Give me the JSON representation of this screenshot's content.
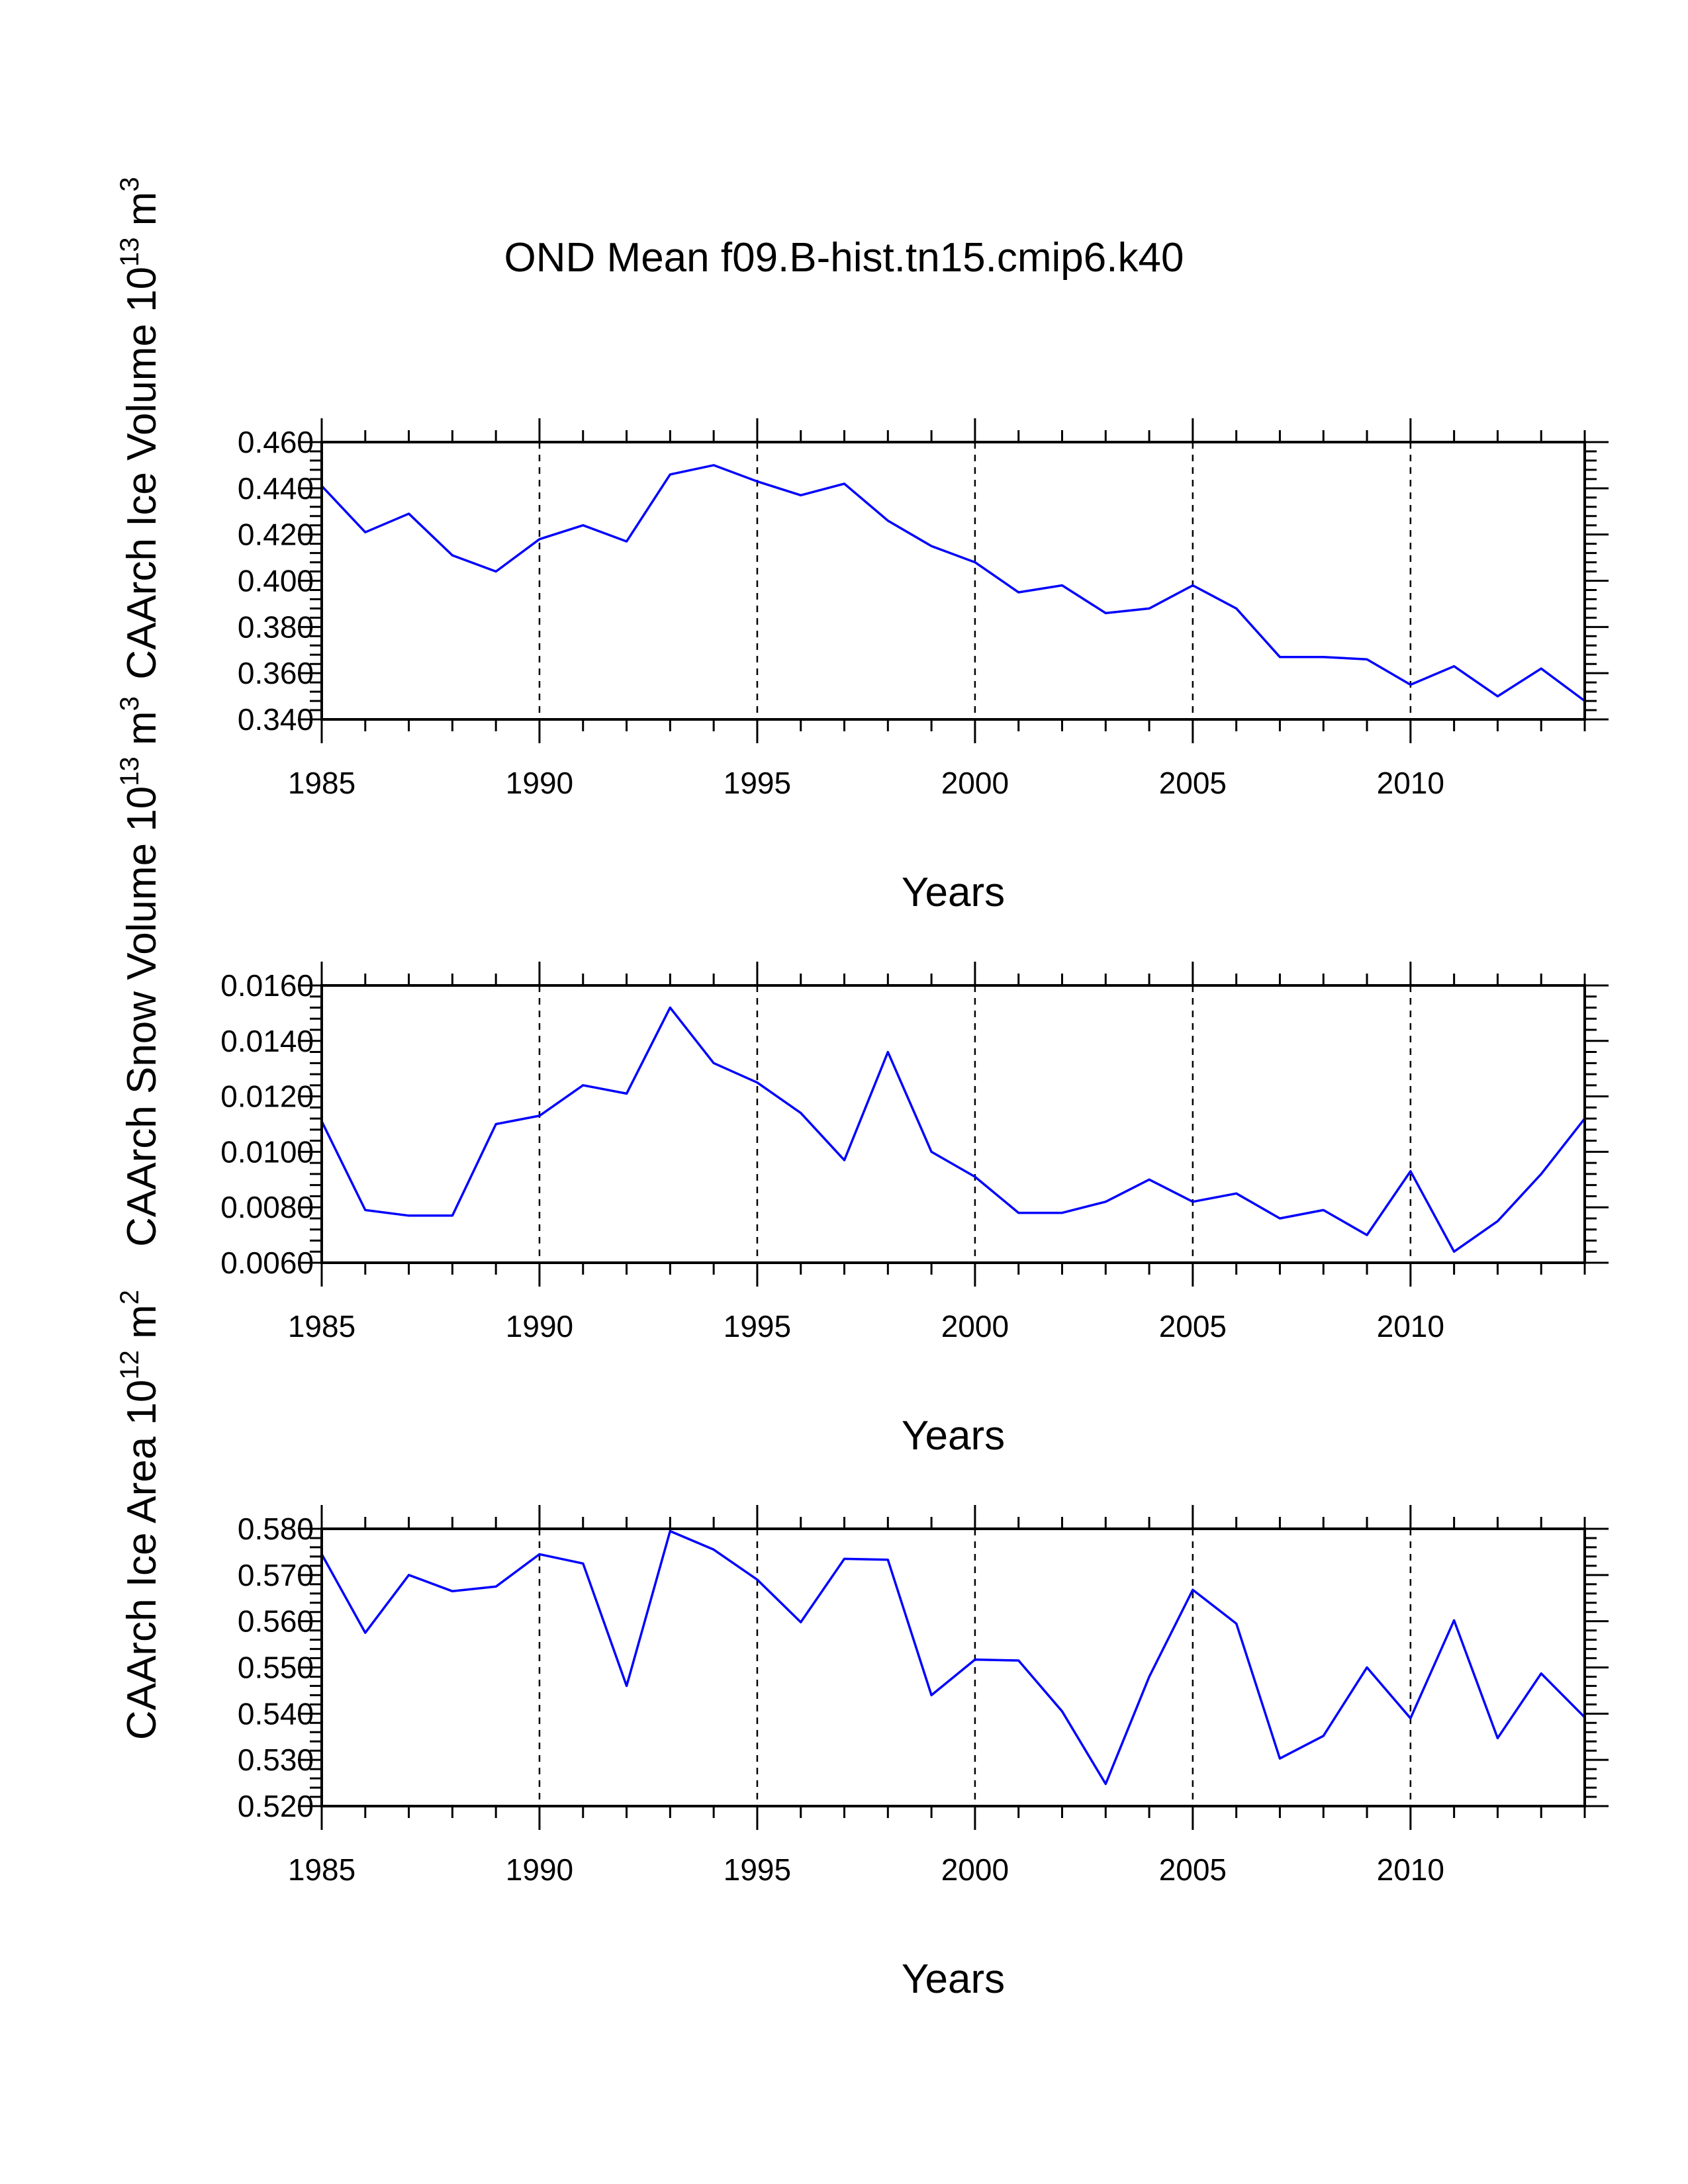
{
  "figure": {
    "title": "OND Mean f09.B-hist.tn15.cmip6.k40",
    "line_color": "#0000ff"
  },
  "chart_data": [
    {
      "type": "line",
      "title": "",
      "xlabel": "Years",
      "ylabel_main": "CAArch Ice Volume 10",
      "ylabel_exp": "13",
      "ylabel_unit": " m",
      "ylabel_unit_exp": "3",
      "xlim": [
        1985,
        2014
      ],
      "ylim": [
        0.34,
        0.46
      ],
      "yticks": [
        0.34,
        0.36,
        0.38,
        0.4,
        0.42,
        0.44,
        0.46
      ],
      "ytick_labels": [
        "0.340",
        "0.360",
        "0.380",
        "0.400",
        "0.420",
        "0.440",
        "0.460"
      ],
      "xticks": [
        1985,
        1990,
        1995,
        2000,
        2005,
        2010
      ],
      "xtick_labels": [
        "1985",
        "1990",
        "1995",
        "2000",
        "2005",
        "2010"
      ],
      "grid_x": [
        1990,
        1995,
        2000,
        2005,
        2010
      ],
      "series": [
        {
          "name": "CAArch Ice Volume",
          "x": [
            1985,
            1986,
            1987,
            1988,
            1989,
            1990,
            1991,
            1992,
            1993,
            1994,
            1995,
            1996,
            1997,
            1998,
            1999,
            2000,
            2001,
            2002,
            2003,
            2004,
            2005,
            2006,
            2007,
            2008,
            2009,
            2010,
            2011,
            2012,
            2013,
            2014
          ],
          "values": [
            0.441,
            0.421,
            0.429,
            0.411,
            0.404,
            0.418,
            0.424,
            0.417,
            0.446,
            0.45,
            0.443,
            0.437,
            0.442,
            0.426,
            0.415,
            0.408,
            0.395,
            0.398,
            0.386,
            0.388,
            0.398,
            0.388,
            0.367,
            0.367,
            0.366,
            0.355,
            0.363,
            0.35,
            0.362,
            0.348
          ]
        }
      ]
    },
    {
      "type": "line",
      "title": "",
      "xlabel": "Years",
      "ylabel_main": "CAArch Snow Volume 10",
      "ylabel_exp": "13",
      "ylabel_unit": " m",
      "ylabel_unit_exp": "3",
      "xlim": [
        1985,
        2014
      ],
      "ylim": [
        0.006,
        0.016
      ],
      "yticks": [
        0.006,
        0.008,
        0.01,
        0.012,
        0.014,
        0.016
      ],
      "ytick_labels": [
        "0.0060",
        "0.0080",
        "0.0100",
        "0.0120",
        "0.0140",
        "0.0160"
      ],
      "xticks": [
        1985,
        1990,
        1995,
        2000,
        2005,
        2010
      ],
      "xtick_labels": [
        "1985",
        "1990",
        "1995",
        "2000",
        "2005",
        "2010"
      ],
      "grid_x": [
        1990,
        1995,
        2000,
        2005,
        2010
      ],
      "series": [
        {
          "name": "CAArch Snow Volume",
          "x": [
            1985,
            1986,
            1987,
            1988,
            1989,
            1990,
            1991,
            1992,
            1993,
            1994,
            1995,
            1996,
            1997,
            1998,
            1999,
            2000,
            2001,
            2002,
            2003,
            2004,
            2005,
            2006,
            2007,
            2008,
            2009,
            2010,
            2011,
            2012,
            2013,
            2014
          ],
          "values": [
            0.0111,
            0.0079,
            0.0077,
            0.0077,
            0.011,
            0.0113,
            0.0124,
            0.0121,
            0.0152,
            0.0132,
            0.0125,
            0.0114,
            0.0097,
            0.0136,
            0.01,
            0.0091,
            0.0078,
            0.0078,
            0.0082,
            0.009,
            0.0082,
            0.0085,
            0.0076,
            0.0079,
            0.007,
            0.0093,
            0.0064,
            0.0075,
            0.0092,
            0.0112
          ]
        }
      ]
    },
    {
      "type": "line",
      "title": "",
      "xlabel": "Years",
      "ylabel_main": "CAArch Ice Area 10",
      "ylabel_exp": "12",
      "ylabel_unit": " m",
      "ylabel_unit_exp": "2",
      "xlim": [
        1985,
        2014
      ],
      "ylim": [
        0.52,
        0.58
      ],
      "yticks": [
        0.52,
        0.53,
        0.54,
        0.55,
        0.56,
        0.57,
        0.58
      ],
      "ytick_labels": [
        "0.520",
        "0.530",
        "0.540",
        "0.550",
        "0.560",
        "0.570",
        "0.580"
      ],
      "xticks": [
        1985,
        1990,
        1995,
        2000,
        2005,
        2010
      ],
      "xtick_labels": [
        "1985",
        "1990",
        "1995",
        "2000",
        "2005",
        "2010"
      ],
      "grid_x": [
        1990,
        1995,
        2000,
        2005,
        2010
      ],
      "series": [
        {
          "name": "CAArch Ice Area",
          "x": [
            1985,
            1986,
            1987,
            1988,
            1989,
            1990,
            1991,
            1992,
            1993,
            1994,
            1995,
            1996,
            1997,
            1998,
            1999,
            2000,
            2001,
            2002,
            2003,
            2004,
            2005,
            2006,
            2007,
            2008,
            2009,
            2010,
            2011,
            2012,
            2013,
            2014
          ],
          "values": [
            0.5745,
            0.5575,
            0.57,
            0.5665,
            0.5675,
            0.5745,
            0.5725,
            0.546,
            0.5795,
            0.5755,
            0.569,
            0.5598,
            0.5735,
            0.5733,
            0.544,
            0.5517,
            0.5515,
            0.5405,
            0.5248,
            0.548,
            0.5668,
            0.5595,
            0.5303,
            0.5352,
            0.55,
            0.539,
            0.5602,
            0.5347,
            0.5487,
            0.5392
          ]
        }
      ]
    }
  ]
}
